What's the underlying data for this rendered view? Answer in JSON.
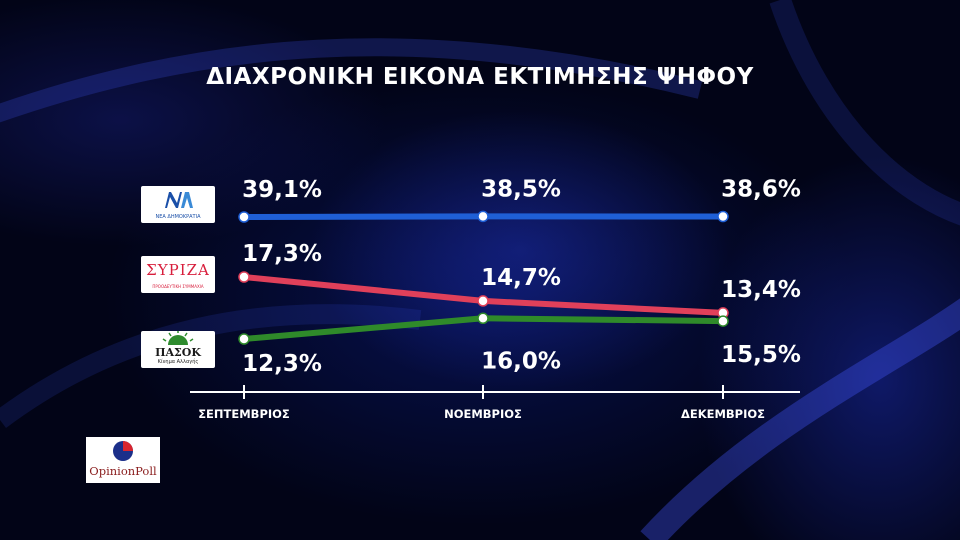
{
  "title": "ΔΙΑΧΡΟΝΙΚΗ ΕΙΚΟΝΑ ΕΚΤΙΜΗΣΗΣ ΨΗΦΟΥ",
  "logos": {
    "nd": {
      "mark": "ΝΔ",
      "sub": "ΝΕΑ ΔΗΜΟΚΡΑΤΙΑ",
      "color": "#1a4fa8"
    },
    "syriza": {
      "mark": "ΣΥΡΙΖΑ",
      "sub": "ΠΡΟΟΔΕΥΤΙΚΗ ΣΥΜΜΑΧΙΑ",
      "color": "#d81e3c"
    },
    "pasok": {
      "mark": "ΠΑΣΟΚ",
      "sub": "Κίνημα Αλλαγής",
      "color": "#2e8b2e"
    },
    "pollster": {
      "name": "OpinionPoll"
    }
  },
  "chart_data": {
    "type": "line",
    "categories": [
      "ΣΕΠΤΕΜΒΡΙΟΣ",
      "ΝΟΕΜΒΡΙΟΣ",
      "ΔΕΚΕΜΒΡΙΟΣ"
    ],
    "series": [
      {
        "key": "nd",
        "values": [
          39.1,
          38.5,
          38.6
        ],
        "labels": [
          "39,1%",
          "38,5%",
          "38,6%"
        ],
        "color": "#1f5fd6"
      },
      {
        "key": "syriza",
        "values": [
          17.3,
          14.7,
          13.4
        ],
        "labels": [
          "17,3%",
          "14,7%",
          "13,4%"
        ],
        "color": "#e0405a"
      },
      {
        "key": "pasok",
        "values": [
          12.3,
          16.0,
          15.5
        ],
        "labels": [
          "12,3%",
          "16,0%",
          "15,5%"
        ],
        "color": "#2f8a2a"
      }
    ],
    "grid": false,
    "legend": "left (party logos)"
  }
}
